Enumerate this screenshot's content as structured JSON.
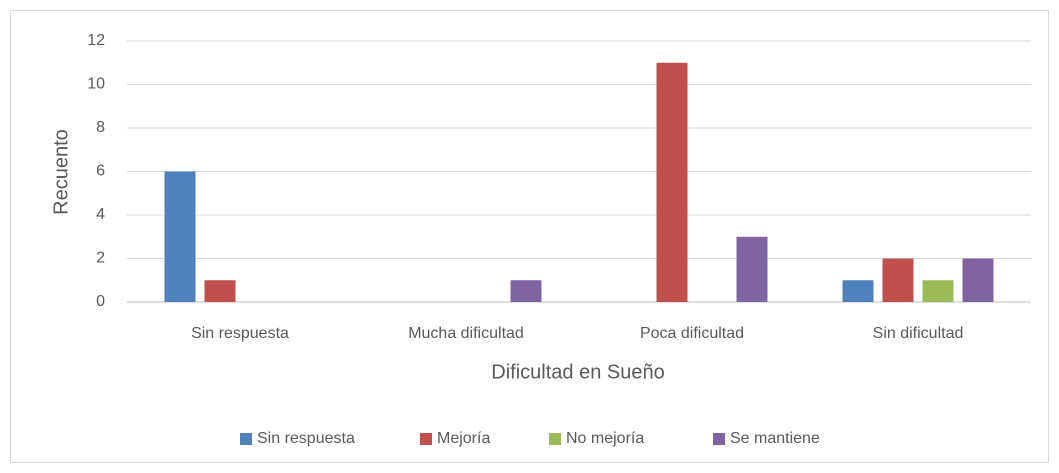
{
  "chart_data": {
    "type": "bar",
    "xlabel": "Dificultad en Sueño",
    "ylabel": "Recuento",
    "categories": [
      "Sin respuesta",
      "Mucha dificultad",
      "Poca dificultad",
      "Sin dificultad"
    ],
    "series": [
      {
        "name": "Sin respuesta",
        "color": "#4f81bd",
        "values": [
          6,
          0,
          0,
          1
        ]
      },
      {
        "name": "Mejoría",
        "color": "#c0504d",
        "values": [
          1,
          0,
          11,
          2
        ]
      },
      {
        "name": "No mejoría",
        "color": "#9bbb59",
        "values": [
          0,
          0,
          0,
          1
        ]
      },
      {
        "name": "Se mantiene",
        "color": "#8064a2",
        "values": [
          0,
          1,
          3,
          2
        ]
      }
    ],
    "ylim": [
      0,
      12
    ],
    "yticks": [
      0,
      2,
      4,
      6,
      8,
      10,
      12
    ],
    "grid": true,
    "legend": "bottom"
  }
}
